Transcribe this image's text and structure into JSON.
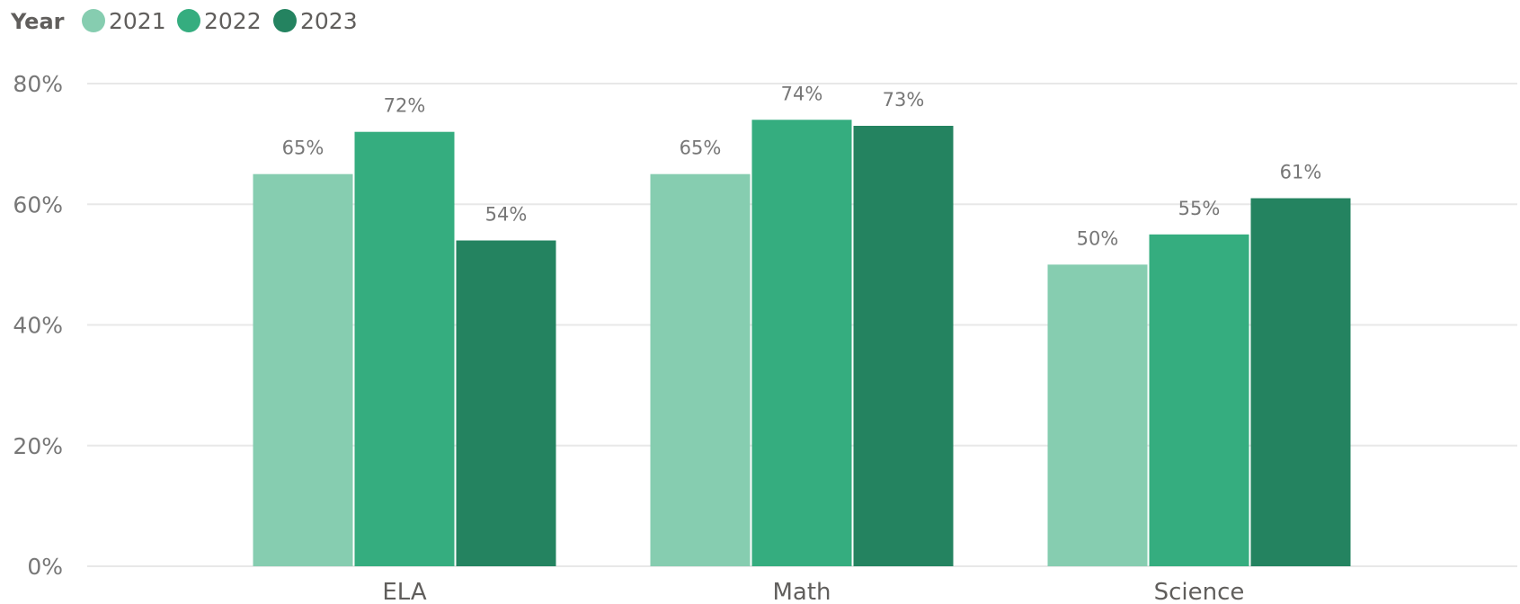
{
  "chart_data": {
    "type": "bar",
    "legend": {
      "title": "Year",
      "position": "top-left"
    },
    "categories": [
      "ELA",
      "Math",
      "Science"
    ],
    "series": [
      {
        "name": "2021",
        "color": "#86cdb0",
        "values": [
          65,
          65,
          50
        ],
        "labels": [
          "65%",
          "65%",
          "50%"
        ]
      },
      {
        "name": "2022",
        "color": "#35ad7f",
        "values": [
          72,
          74,
          55
        ],
        "labels": [
          "72%",
          "74%",
          "55%"
        ]
      },
      {
        "name": "2023",
        "color": "#248360",
        "values": [
          54,
          73,
          61
        ],
        "labels": [
          "54%",
          "73%",
          "61%"
        ]
      }
    ],
    "yaxis": {
      "ticks": [
        0,
        20,
        40,
        60,
        80
      ],
      "tick_labels": [
        "0%",
        "20%",
        "40%",
        "60%",
        "80%"
      ],
      "ylim": [
        0,
        80
      ]
    },
    "grid": true,
    "xlabel": "",
    "ylabel": ""
  }
}
